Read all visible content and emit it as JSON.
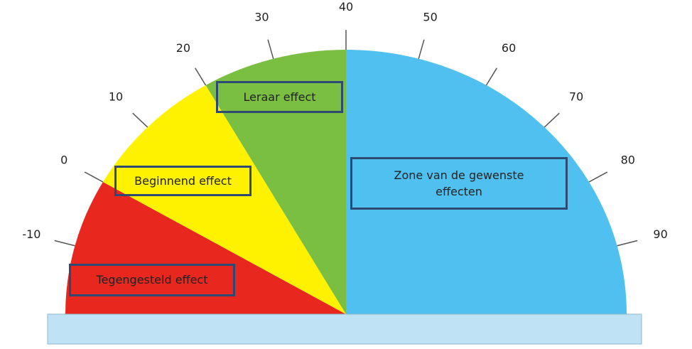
{
  "ticks": [
    "-10",
    "0",
    "10",
    "20",
    "30",
    "40",
    "50",
    "60",
    "70",
    "80",
    "90"
  ],
  "zones": [
    {
      "label": "Tegengesteld effect",
      "color": "#e8271f"
    },
    {
      "label": "Beginnend effect",
      "color": "#fff200"
    },
    {
      "label": "Leraar effect",
      "color": "#7bbf42"
    },
    {
      "label": "Zone van de gewenste effecten",
      "color": "#4fc0ef"
    }
  ]
}
